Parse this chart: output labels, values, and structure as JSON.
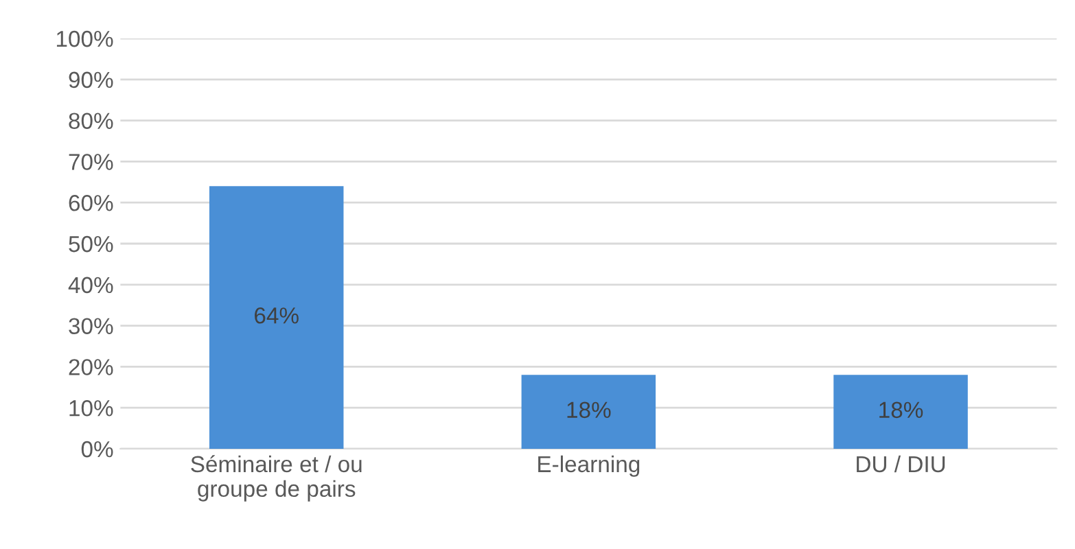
{
  "chart_data": {
    "type": "bar",
    "categories": [
      "Séminaire et / ou\ngroupe de pairs",
      "E-learning",
      "DU / DIU"
    ],
    "values": [
      64,
      18,
      18
    ],
    "color": "#4a8fd6",
    "value_labels": [
      "64%",
      "18%",
      "18%"
    ],
    "ylim": [
      0,
      100
    ],
    "yticks": [
      {
        "value": 0,
        "label": "0%"
      },
      {
        "value": 10,
        "label": "10%"
      },
      {
        "value": 20,
        "label": "20%"
      },
      {
        "value": 30,
        "label": "30%"
      },
      {
        "value": 40,
        "label": "40%"
      },
      {
        "value": 50,
        "label": "50%"
      },
      {
        "value": 60,
        "label": "60%"
      },
      {
        "value": 70,
        "label": "70%"
      },
      {
        "value": 80,
        "label": "80%"
      },
      {
        "value": 90,
        "label": "90%"
      },
      {
        "value": 100,
        "label": "100%"
      }
    ],
    "grid": "y"
  }
}
